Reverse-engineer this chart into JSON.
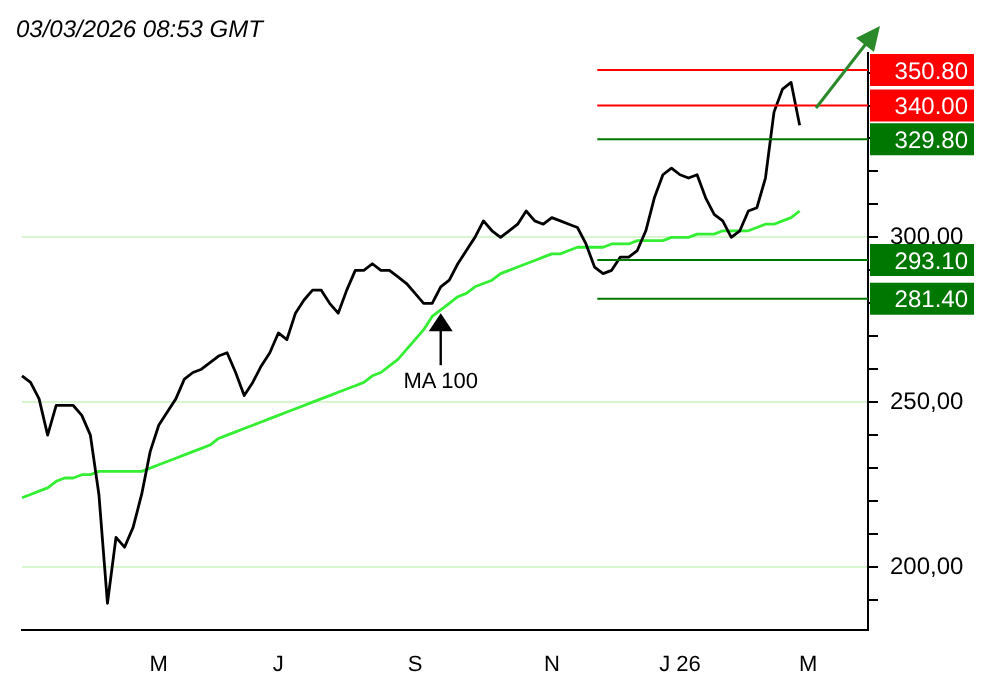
{
  "chart_data": {
    "type": "line",
    "title": "03/03/2026 08:53 GMT",
    "categories": [
      null,
      null,
      null,
      null,
      null,
      null,
      null,
      null,
      null,
      null,
      null,
      null,
      null,
      null,
      null,
      null,
      "M",
      null,
      null,
      null,
      null,
      null,
      null,
      null,
      null,
      null,
      null,
      null,
      null,
      null,
      "J",
      null,
      null,
      null,
      null,
      null,
      null,
      null,
      null,
      null,
      null,
      null,
      null,
      null,
      null,
      null,
      "S",
      null,
      null,
      null,
      null,
      null,
      null,
      null,
      null,
      null,
      null,
      null,
      null,
      null,
      null,
      null,
      "N",
      null,
      null,
      null,
      null,
      null,
      null,
      null,
      null,
      null,
      null,
      null,
      null,
      null,
      null,
      "J 26",
      null,
      null,
      null,
      null,
      null,
      null,
      null,
      null,
      null,
      null,
      null,
      null,
      null,
      null,
      "M",
      null,
      null,
      null,
      null,
      null,
      null,
      null
    ],
    "ylim": [
      181,
      356
    ],
    "yticks": [
      {
        "value": 190,
        "label": null
      },
      {
        "value": 200,
        "label": "200,00"
      },
      {
        "value": 210,
        "label": null
      },
      {
        "value": 220,
        "label": null
      },
      {
        "value": 230,
        "label": null
      },
      {
        "value": 240,
        "label": null
      },
      {
        "value": 250,
        "label": "250,00"
      },
      {
        "value": 260,
        "label": null
      },
      {
        "value": 270,
        "label": null
      },
      {
        "value": 280,
        "label": null
      },
      {
        "value": 290,
        "label": null
      },
      {
        "value": 300,
        "label": "300,00"
      },
      {
        "value": 310,
        "label": null
      },
      {
        "value": 320,
        "label": null
      },
      {
        "value": 330,
        "label": null
      },
      {
        "value": 340,
        "label": null
      },
      {
        "value": 350,
        "label": null
      }
    ],
    "grid": "y",
    "series": [
      {
        "color": "#000000",
        "values": [
          258,
          256,
          251,
          240,
          249,
          249,
          249,
          246,
          240,
          222,
          189,
          209,
          206,
          212,
          222,
          235,
          243,
          247,
          251,
          257,
          259,
          260,
          262,
          264,
          265,
          259,
          252,
          256,
          261,
          265,
          271,
          269,
          277,
          281,
          284,
          284,
          280,
          277,
          284,
          290,
          290,
          292,
          290,
          290,
          288,
          286,
          283,
          280,
          280,
          285,
          287,
          292,
          296,
          300,
          305,
          302,
          300,
          302,
          304,
          308,
          305,
          304,
          306,
          305,
          304,
          303,
          298,
          291,
          289,
          290,
          294,
          294,
          296,
          302,
          312,
          319,
          321,
          319,
          318,
          319,
          312,
          307,
          305,
          300,
          302,
          308,
          309,
          318,
          338,
          345,
          347,
          334,
          null,
          null,
          null,
          null,
          null,
          null,
          null,
          null
        ]
      },
      {
        "color": "#33ee33",
        "values": [
          221,
          222,
          223,
          224,
          226,
          227,
          227,
          228,
          228,
          229,
          229,
          229,
          229,
          229,
          229,
          230,
          231,
          232,
          233,
          234,
          235,
          236,
          237,
          239,
          240,
          241,
          242,
          243,
          244,
          245,
          246,
          247,
          248,
          249,
          250,
          251,
          252,
          253,
          254,
          255,
          256,
          258,
          259,
          261,
          263,
          266,
          269,
          272,
          276,
          278,
          280,
          282,
          283,
          285,
          286,
          287,
          289,
          290,
          291,
          292,
          293,
          294,
          295,
          295,
          296,
          297,
          297,
          297,
          297,
          298,
          298,
          298,
          299,
          299,
          299,
          299,
          300,
          300,
          300,
          301,
          301,
          301,
          302,
          302,
          302,
          302,
          303,
          304,
          304,
          305,
          306,
          308,
          null,
          null,
          null,
          null,
          null,
          null,
          null,
          null
        ]
      }
    ],
    "ref_lines": [
      {
        "axis": "y",
        "value": 350.8,
        "label": "350.80",
        "color": "#ff0000"
      },
      {
        "axis": "y",
        "value": 340,
        "label": "340.00",
        "color": "#ff0000"
      },
      {
        "axis": "y",
        "value": 329.8,
        "label": "329.80",
        "color": "#007700"
      },
      {
        "axis": "y",
        "value": 293.1,
        "label": "293.10",
        "color": "#007700"
      },
      {
        "axis": "y",
        "value": 281.4,
        "label": "281.40",
        "color": "#007700"
      }
    ],
    "annotations": [
      {
        "text": "MA 100",
        "y": 277
      }
    ]
  }
}
